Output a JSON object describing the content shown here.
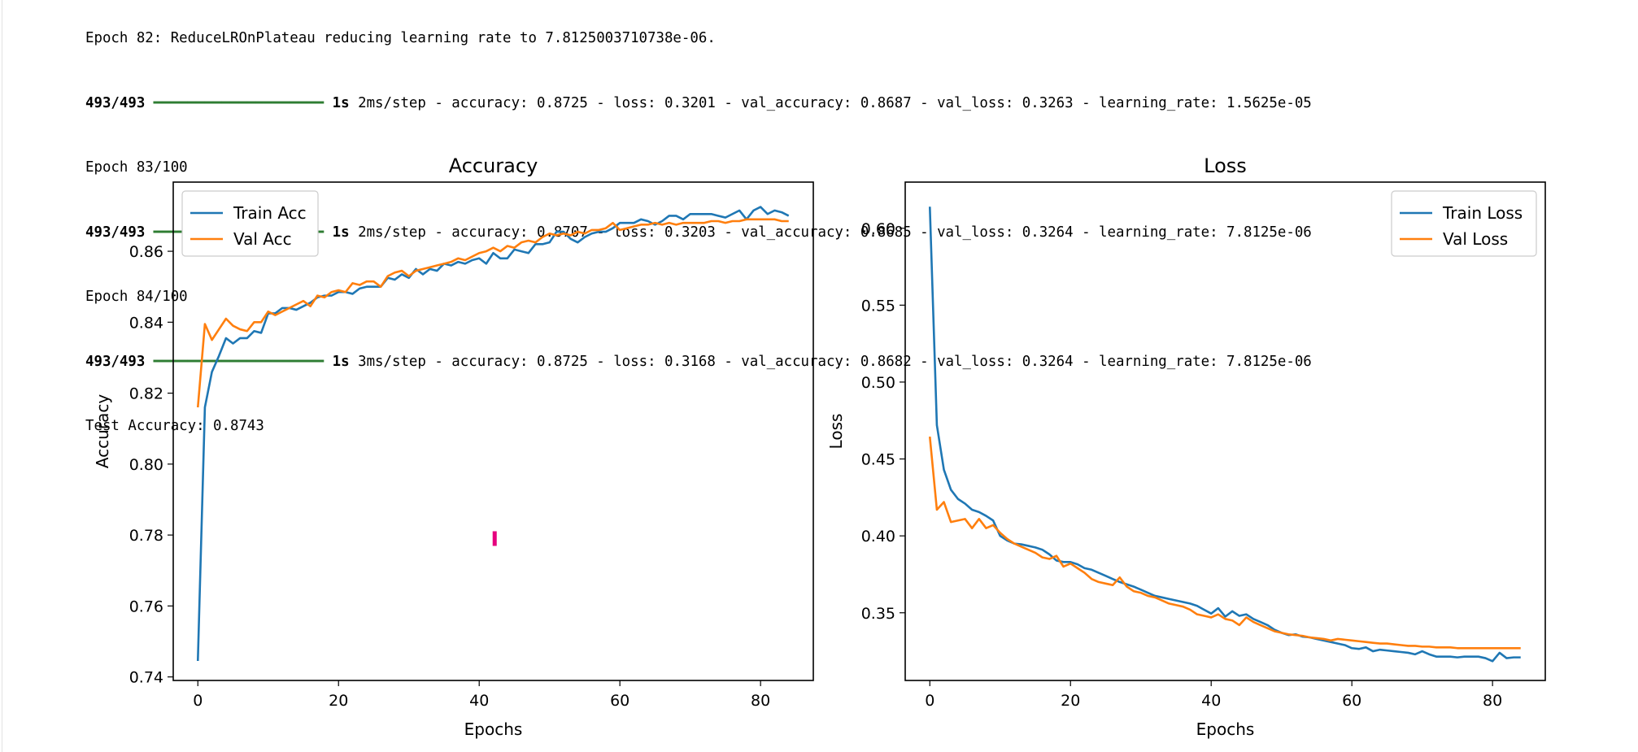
{
  "log": {
    "top_line": "Epoch 82: ReduceLROnPlateau reducing learning rate to 7.8125003710738e-06.",
    "lines": [
      {
        "kind": "progress",
        "steps": "493/493",
        "bar": "━━━━━━━━━━━━━━━━━━━━",
        "time": "1s",
        "metrics": "2ms/step - accuracy: 0.8725 - loss: 0.3201 - val_accuracy: 0.8687 - val_loss: 0.3263 - learning_rate: 1.5625e-05"
      },
      {
        "kind": "text",
        "text": "Epoch 83/100"
      },
      {
        "kind": "progress",
        "steps": "493/493",
        "bar": "━━━━━━━━━━━━━━━━━━━━",
        "time": "1s",
        "metrics": "2ms/step - accuracy: 0.8707 - loss: 0.3203 - val_accuracy: 0.8685 - val_loss: 0.3264 - learning_rate: 7.8125e-06"
      },
      {
        "kind": "text",
        "text": "Epoch 84/100"
      },
      {
        "kind": "progress",
        "steps": "493/493",
        "bar": "━━━━━━━━━━━━━━━━━━━━",
        "time": "1s",
        "metrics": "3ms/step - accuracy: 0.8725 - loss: 0.3168 - val_accuracy: 0.8682 - val_loss: 0.3264 - learning_rate: 7.8125e-06"
      },
      {
        "kind": "text",
        "text": "Test Accuracy: 0.8743"
      }
    ]
  },
  "colors": {
    "train": "#1f77b4",
    "val": "#ff7f0e",
    "cursor": "#e6007e"
  },
  "chart_data": [
    {
      "type": "line",
      "title": "Accuracy",
      "xlabel": "Epochs",
      "ylabel": "Accuracy",
      "xlim": [
        -3.5,
        87.5
      ],
      "ylim": [
        0.739,
        0.8795
      ],
      "xticks": [
        0,
        20,
        40,
        60,
        80
      ],
      "yticks": [
        0.74,
        0.76,
        0.78,
        0.8,
        0.82,
        0.84,
        0.86
      ],
      "ytick_labels": [
        "0.74",
        "0.76",
        "0.78",
        "0.80",
        "0.82",
        "0.84",
        "0.86"
      ],
      "legend": "upper-left",
      "cursor_marker": {
        "x": 42.2,
        "y": 0.779
      },
      "series": [
        {
          "name": "Train Acc",
          "color": "#1f77b4",
          "values": [
            0.7445,
            0.816,
            0.826,
            0.8305,
            0.8355,
            0.834,
            0.8355,
            0.8355,
            0.8375,
            0.837,
            0.8425,
            0.8425,
            0.844,
            0.844,
            0.8435,
            0.8445,
            0.8455,
            0.847,
            0.8475,
            0.8475,
            0.8485,
            0.8485,
            0.848,
            0.8495,
            0.85,
            0.85,
            0.85,
            0.8525,
            0.852,
            0.8535,
            0.8525,
            0.855,
            0.8535,
            0.855,
            0.8545,
            0.8565,
            0.856,
            0.857,
            0.8565,
            0.8575,
            0.858,
            0.8565,
            0.8595,
            0.858,
            0.858,
            0.8605,
            0.86,
            0.8595,
            0.862,
            0.862,
            0.8625,
            0.8655,
            0.8655,
            0.8635,
            0.8625,
            0.864,
            0.865,
            0.8655,
            0.8655,
            0.8665,
            0.868,
            0.868,
            0.868,
            0.869,
            0.8685,
            0.8675,
            0.8685,
            0.87,
            0.87,
            0.869,
            0.8705,
            0.8705,
            0.8705,
            0.8705,
            0.87,
            0.8695,
            0.8705,
            0.8715,
            0.869,
            0.8715,
            0.8725,
            0.8705,
            0.8715,
            0.871,
            0.87
          ]
        },
        {
          "name": "Val Acc",
          "color": "#ff7f0e",
          "values": [
            0.816,
            0.8395,
            0.835,
            0.838,
            0.841,
            0.839,
            0.838,
            0.8375,
            0.84,
            0.84,
            0.843,
            0.842,
            0.843,
            0.844,
            0.845,
            0.846,
            0.8445,
            0.8475,
            0.847,
            0.8485,
            0.849,
            0.8485,
            0.851,
            0.8505,
            0.8515,
            0.8515,
            0.85,
            0.853,
            0.854,
            0.8545,
            0.853,
            0.8545,
            0.855,
            0.8555,
            0.856,
            0.8565,
            0.857,
            0.858,
            0.8575,
            0.8585,
            0.8595,
            0.86,
            0.861,
            0.86,
            0.8615,
            0.861,
            0.8625,
            0.863,
            0.8625,
            0.864,
            0.865,
            0.8645,
            0.865,
            0.8645,
            0.8655,
            0.865,
            0.866,
            0.866,
            0.8665,
            0.868,
            0.866,
            0.8665,
            0.867,
            0.8675,
            0.8675,
            0.868,
            0.8675,
            0.868,
            0.8675,
            0.868,
            0.868,
            0.868,
            0.868,
            0.8685,
            0.8685,
            0.868,
            0.8685,
            0.8685,
            0.869,
            0.869,
            0.869,
            0.869,
            0.869,
            0.8685,
            0.8685
          ]
        }
      ]
    },
    {
      "type": "line",
      "title": "Loss",
      "xlabel": "Epochs",
      "ylabel": "Loss",
      "xlim": [
        -3.5,
        87.5
      ],
      "ylim": [
        0.306,
        0.63
      ],
      "xticks": [
        0,
        20,
        40,
        60,
        80
      ],
      "yticks": [
        0.35,
        0.4,
        0.45,
        0.5,
        0.55,
        0.6
      ],
      "ytick_labels": [
        "0.35",
        "0.40",
        "0.45",
        "0.50",
        "0.55",
        "0.60"
      ],
      "legend": "upper-right",
      "series": [
        {
          "name": "Train Loss",
          "color": "#1f77b4",
          "values": [
            0.614,
            0.472,
            0.443,
            0.43,
            0.424,
            0.421,
            0.417,
            0.4155,
            0.413,
            0.41,
            0.4,
            0.397,
            0.395,
            0.3945,
            0.3935,
            0.3925,
            0.391,
            0.388,
            0.384,
            0.383,
            0.383,
            0.3815,
            0.379,
            0.378,
            0.376,
            0.374,
            0.372,
            0.37,
            0.3685,
            0.367,
            0.365,
            0.363,
            0.361,
            0.36,
            0.359,
            0.358,
            0.357,
            0.356,
            0.3545,
            0.352,
            0.3495,
            0.353,
            0.3475,
            0.351,
            0.348,
            0.349,
            0.346,
            0.344,
            0.342,
            0.339,
            0.337,
            0.3355,
            0.336,
            0.3345,
            0.334,
            0.333,
            0.332,
            0.331,
            0.33,
            0.329,
            0.327,
            0.3265,
            0.3275,
            0.325,
            0.326,
            0.3255,
            0.325,
            0.3245,
            0.324,
            0.323,
            0.325,
            0.323,
            0.3215,
            0.3215,
            0.3215,
            0.321,
            0.3215,
            0.3215,
            0.3215,
            0.3205,
            0.3185,
            0.324,
            0.3205,
            0.321,
            0.321
          ]
        },
        {
          "name": "Val Loss",
          "color": "#ff7f0e",
          "values": [
            0.4645,
            0.417,
            0.422,
            0.409,
            0.41,
            0.411,
            0.405,
            0.411,
            0.405,
            0.407,
            0.402,
            0.398,
            0.395,
            0.393,
            0.391,
            0.389,
            0.386,
            0.385,
            0.387,
            0.38,
            0.382,
            0.379,
            0.376,
            0.372,
            0.37,
            0.369,
            0.368,
            0.373,
            0.367,
            0.364,
            0.363,
            0.361,
            0.36,
            0.358,
            0.356,
            0.355,
            0.354,
            0.352,
            0.349,
            0.348,
            0.347,
            0.349,
            0.346,
            0.345,
            0.342,
            0.347,
            0.344,
            0.342,
            0.34,
            0.338,
            0.337,
            0.336,
            0.3355,
            0.335,
            0.334,
            0.3335,
            0.333,
            0.332,
            0.333,
            0.3325,
            0.332,
            0.3315,
            0.331,
            0.3305,
            0.33,
            0.33,
            0.3295,
            0.329,
            0.3285,
            0.3285,
            0.328,
            0.328,
            0.3275,
            0.3275,
            0.3275,
            0.327,
            0.327,
            0.327,
            0.327,
            0.327,
            0.327,
            0.327,
            0.327,
            0.327,
            0.327
          ]
        }
      ]
    }
  ]
}
